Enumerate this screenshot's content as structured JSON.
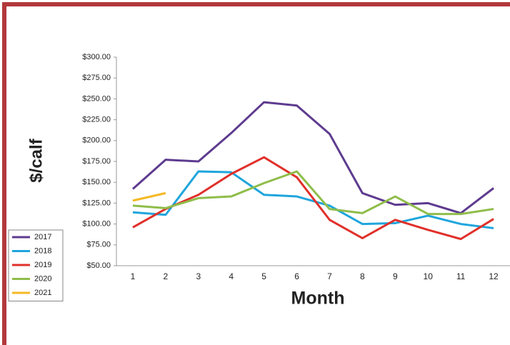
{
  "chart_data": {
    "type": "line",
    "x_label": "Month",
    "y_label": "$/calf",
    "categories": [
      "1",
      "2",
      "3",
      "4",
      "5",
      "6",
      "7",
      "8",
      "9",
      "10",
      "11",
      "12"
    ],
    "series": [
      {
        "name": "2017",
        "color": "#5e3b8f",
        "values": [
          142,
          177,
          175,
          209,
          246,
          242,
          208,
          137,
          123,
          125,
          113,
          143
        ]
      },
      {
        "name": "2018",
        "color": "#1fa5dc",
        "values": [
          114,
          111,
          163,
          162,
          135,
          133,
          122,
          100,
          101,
          110,
          100,
          95
        ]
      },
      {
        "name": "2019",
        "color": "#e0302a",
        "values": [
          96,
          118,
          135,
          160,
          180,
          156,
          105,
          83,
          105,
          93,
          82,
          106
        ]
      },
      {
        "name": "2020",
        "color": "#8fbd4a",
        "values": [
          122,
          119,
          131,
          133,
          149,
          163,
          118,
          113,
          133,
          112,
          112,
          118
        ]
      },
      {
        "name": "2021",
        "color": "#f4b824",
        "values": [
          128,
          137,
          null,
          null,
          null,
          null,
          null,
          null,
          null,
          null,
          null,
          null
        ]
      }
    ],
    "ylim": [
      50,
      300
    ],
    "yticks": [
      {
        "value": 50,
        "label": "$50.00"
      },
      {
        "value": 75,
        "label": "$75.00"
      },
      {
        "value": 100,
        "label": "$100.00"
      },
      {
        "value": 125,
        "label": "$125.00"
      },
      {
        "value": 150,
        "label": "$150.00"
      },
      {
        "value": 175,
        "label": "$175.00"
      },
      {
        "value": 200,
        "label": "$200.00"
      },
      {
        "value": 225,
        "label": "$225.00"
      },
      {
        "value": 250,
        "label": "$250.00"
      },
      {
        "value": 275,
        "label": "$275.00"
      },
      {
        "value": 300,
        "label": "$300.00"
      }
    ],
    "grid": false,
    "legend": "lower left"
  }
}
